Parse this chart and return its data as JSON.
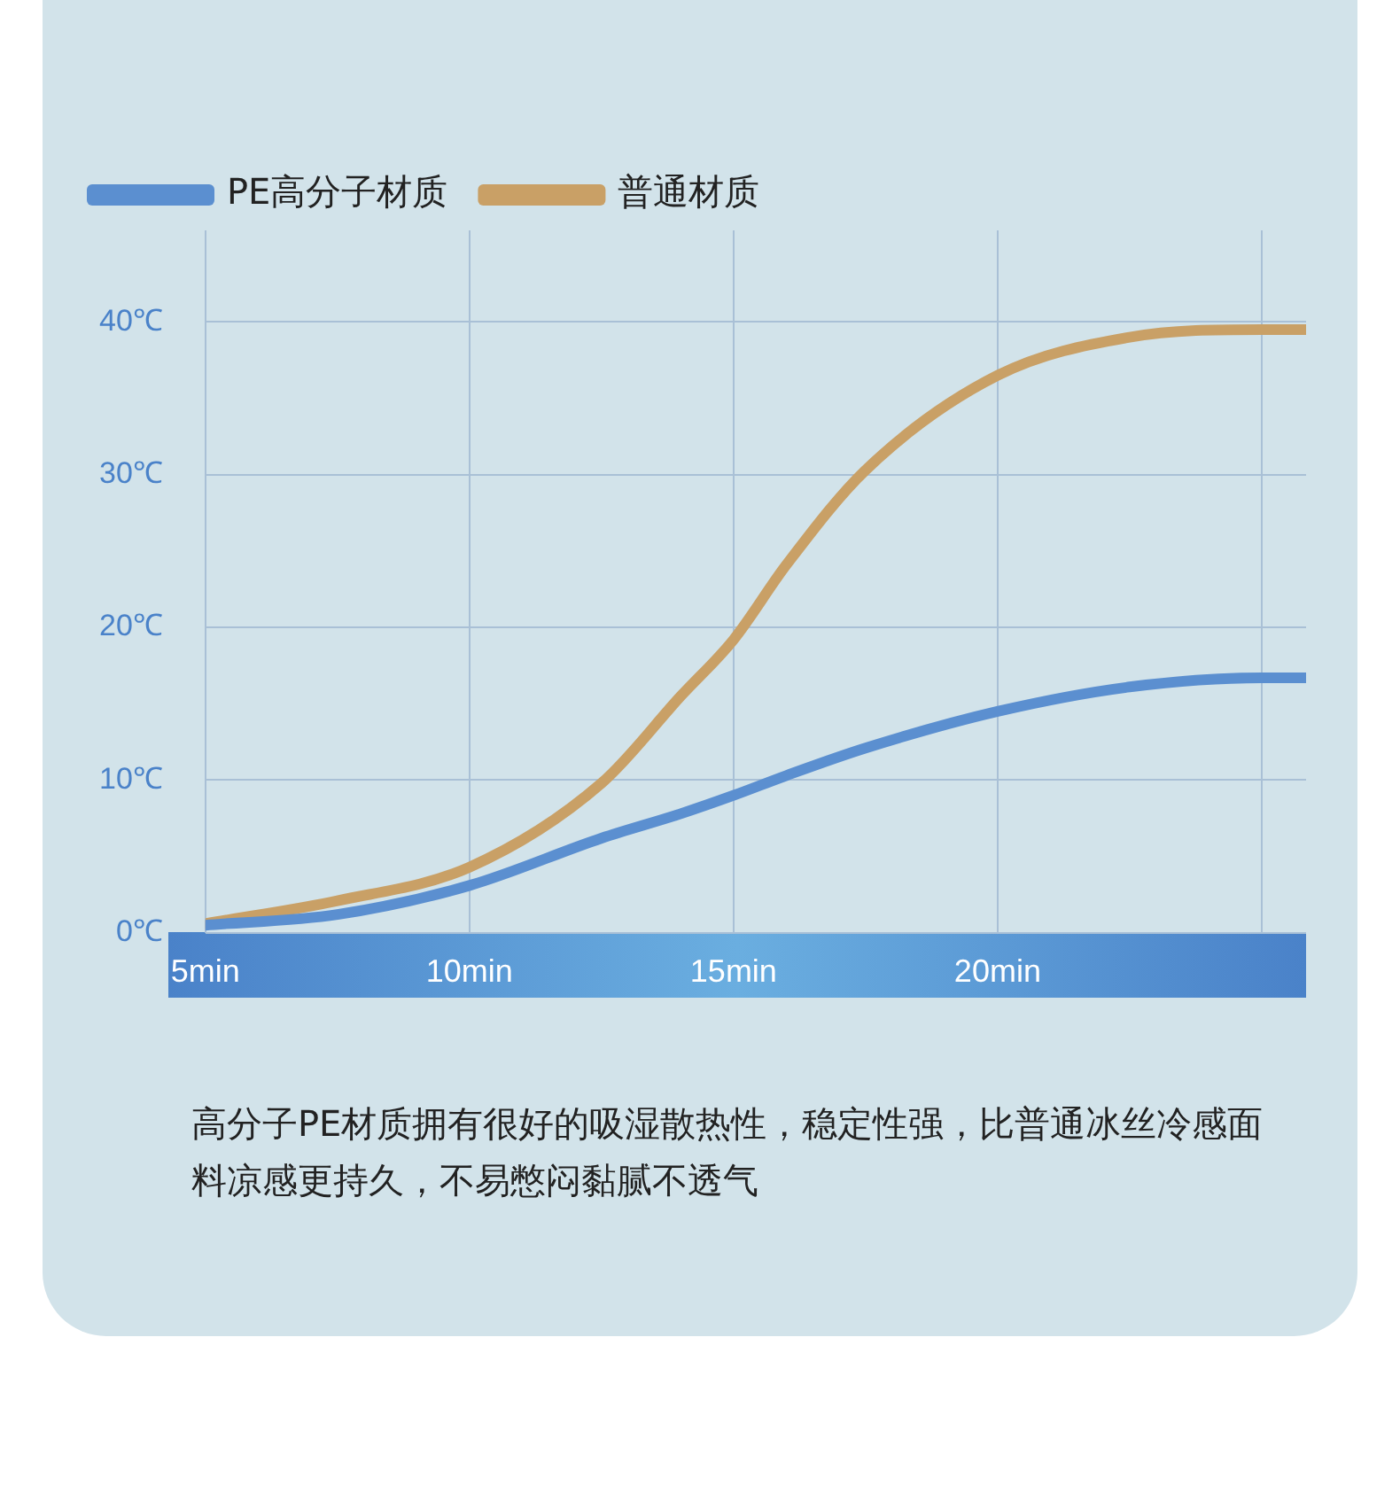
{
  "chart_data": {
    "type": "line",
    "legend": "top left",
    "grid": true,
    "marker": "none",
    "line_style": "solid",
    "x": [
      5,
      7.5,
      10,
      12.5,
      14,
      15,
      16,
      17.5,
      20,
      22.5,
      25,
      25.84
    ],
    "xlim": [
      5,
      25.84
    ],
    "xticks": [
      {
        "value": 5,
        "label": "5min"
      },
      {
        "value": 10,
        "label": "10min"
      },
      {
        "value": 15,
        "label": "15min"
      },
      {
        "value": 20,
        "label": "20min"
      },
      {
        "value": 25,
        "label": null
      }
    ],
    "ylim": [
      0,
      46
    ],
    "yticks": [
      {
        "value": 0,
        "label": "0℃"
      },
      {
        "value": 10,
        "label": "10℃"
      },
      {
        "value": 20,
        "label": "20℃"
      },
      {
        "value": 30,
        "label": "30℃"
      },
      {
        "value": 40,
        "label": "40℃"
      }
    ],
    "series": [
      {
        "name": "PE高分子材质",
        "color": "#5b8fd0",
        "values": [
          0.5,
          1.2,
          3.1,
          6.2,
          7.8,
          9,
          10.3,
          12.1,
          14.5,
          16.1,
          16.7,
          16.7
        ]
      },
      {
        "name": "普通材质",
        "color": "#c9a066",
        "values": [
          0.6,
          2.1,
          4.3,
          9.8,
          15.5,
          19.2,
          24.1,
          30.3,
          36.5,
          39,
          39.5,
          39.5
        ]
      }
    ],
    "annotations": [
      "高分子PE材质拥有很好的吸湿散热性，稳定性强，比普通冰丝冷感面料凉感更持久，不易憋闷黏腻不透气"
    ]
  }
}
